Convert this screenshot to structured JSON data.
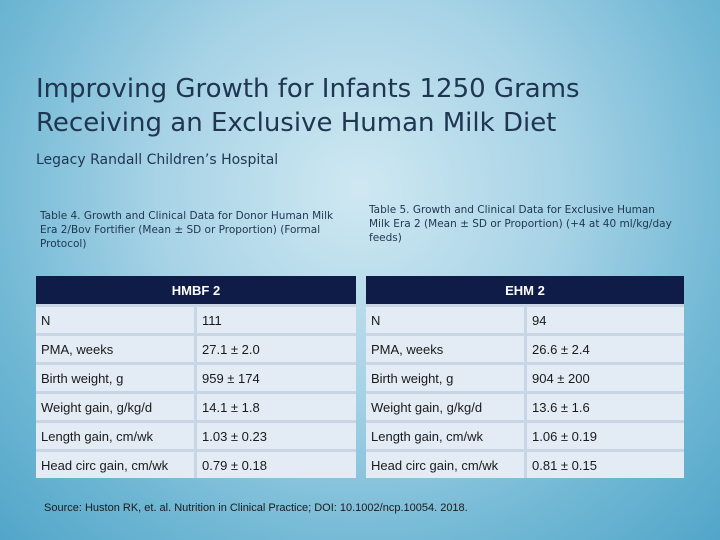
{
  "slide": {
    "title_line1": "Improving Growth for Infants 1250 Grams",
    "title_line2": "Receiving an Exclusive Human Milk Diet",
    "subtitle": "Legacy Randall Children’s Hospital"
  },
  "table_left": {
    "caption": "Table 4. Growth and Clinical Data for Donor Human Milk Era 2/Bov Fortifier (Mean ± SD or Proportion) (Formal Protocol)",
    "header": "HMBF 2",
    "rows": [
      {
        "label": "N",
        "value": "111"
      },
      {
        "label": "PMA, weeks",
        "value": "27.1 ± 2.0"
      },
      {
        "label": "Birth weight, g",
        "value": "959 ± 174"
      },
      {
        "label": "Weight gain, g/kg/d",
        "value": "14.1 ± 1.8"
      },
      {
        "label": "Length gain, cm/wk",
        "value": "1.03 ± 0.23"
      },
      {
        "label": "Head circ gain, cm/wk",
        "value": "0.79 ± 0.18"
      }
    ]
  },
  "table_right": {
    "caption": "Table 5. Growth and Clinical Data for Exclusive Human Milk Era 2 (Mean ± SD or Proportion) (+4 at 40 ml/kg/day feeds)",
    "header": "EHM 2",
    "rows": [
      {
        "label": "N",
        "value": "94"
      },
      {
        "label": "PMA, weeks",
        "value": "26.6 ± 2.4"
      },
      {
        "label": "Birth weight, g",
        "value": "904 ± 200"
      },
      {
        "label": "Weight gain, g/kg/d",
        "value": "13.6 ± 1.6"
      },
      {
        "label": "Length gain, cm/wk",
        "value": "1.06 ± 0.19"
      },
      {
        "label": "Head circ gain, cm/wk",
        "value": "0.81 ± 0.15"
      }
    ]
  },
  "source": "Source: Huston RK, et. al. Nutrition in Clinical Practice; DOI: 10.1002/ncp.10054. 2018."
}
